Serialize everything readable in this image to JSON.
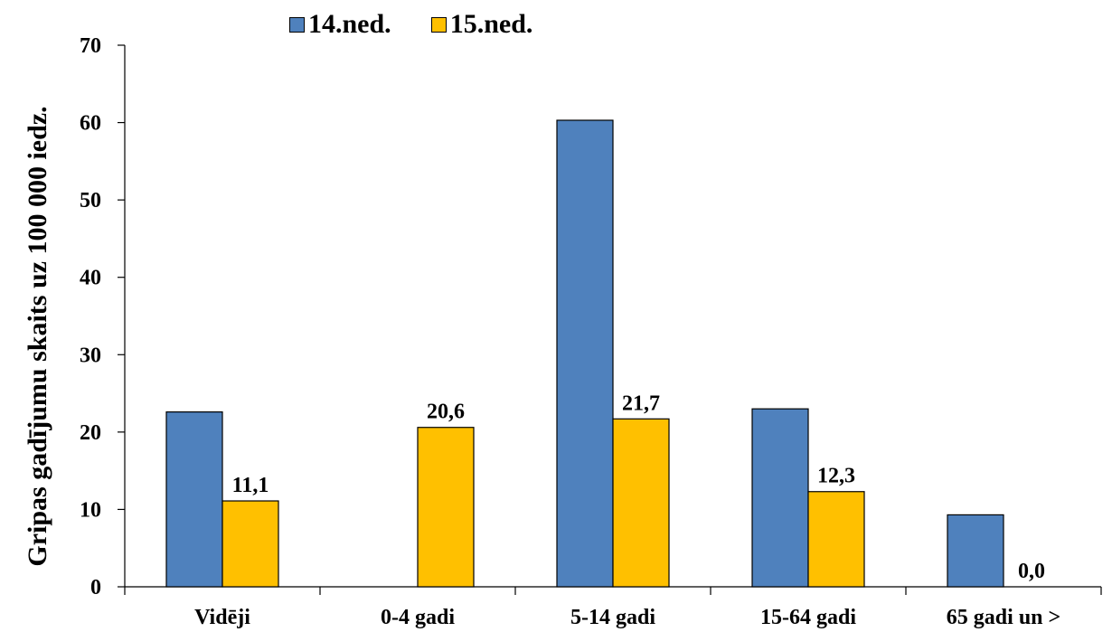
{
  "chart_data": {
    "type": "bar",
    "title": "",
    "xlabel": "",
    "ylabel": "Gripas gadījumu skaits uz 100 000 iedz.",
    "categories": [
      "Vidēji",
      "0-4 gadi",
      "5-14 gadi",
      "15-64 gadi",
      "65 gadi un >"
    ],
    "series": [
      {
        "name": "14.ned.",
        "color": "#4F81BD",
        "values": [
          22.6,
          0,
          60.3,
          23.0,
          9.3
        ],
        "labels": [
          "",
          "",
          "",
          "",
          ""
        ]
      },
      {
        "name": "15.ned.",
        "color": "#FFC000",
        "values": [
          11.1,
          20.6,
          21.7,
          12.3,
          0.0
        ],
        "labels": [
          "11,1",
          "20,6",
          "21,7",
          "12,3",
          "0,0"
        ]
      }
    ],
    "ylim": [
      0,
      70
    ],
    "yticks": [
      0,
      10,
      20,
      30,
      40,
      50,
      60,
      70
    ],
    "grid": false,
    "legend_position": "top-center"
  }
}
